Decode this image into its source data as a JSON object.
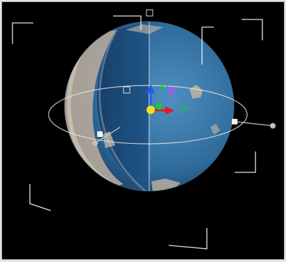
{
  "viewport": {
    "label": "",
    "background": "#000000",
    "object": {
      "name": "sphere",
      "colors": {
        "ocean_light": "#4f8fbf",
        "ocean_dark": "#163d63",
        "cutaway_inner": "#1d4f7f",
        "crust": "#c9b8a4"
      }
    },
    "gizmos": {
      "transform_handle": {
        "icon": "transform-gizmo-icon",
        "axes": [
          {
            "axis": "x",
            "color": "#e11b2a"
          },
          {
            "axis": "y",
            "color": "#1f5cf0"
          },
          {
            "axis": "z",
            "color": "#1cc936"
          }
        ],
        "center_color": "#f0e020"
      },
      "rotate_ring": {
        "icon": "rotation-ring-icon",
        "color": "#e6e6e6"
      },
      "corner_brackets": {
        "icon": "bounding-bracket-icon",
        "color": "#ffffff"
      }
    }
  }
}
